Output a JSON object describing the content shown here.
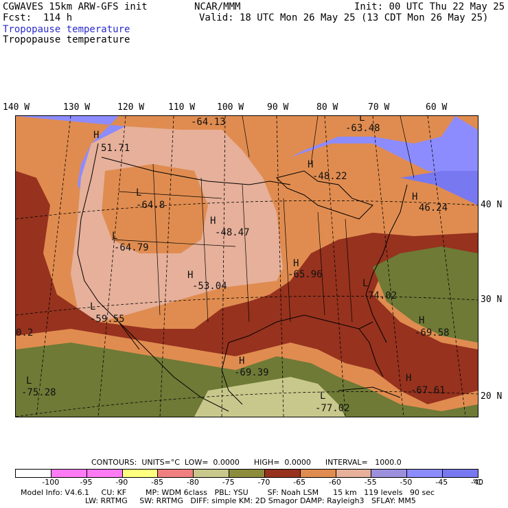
{
  "header": {
    "model": "CGWAVES 15km ARW-GFS init",
    "forecast": "Fcst:  114 h",
    "org": "NCAR/MMM",
    "init": "Init: 00 UTC Thu 22 May 25",
    "valid": "Valid: 18 UTC Mon 26 May 25 (13 CDT Mon 26 May 25)",
    "field_title_1": "Tropopause temperature",
    "field_title_2": "Tropopause temperature"
  },
  "axes": {
    "lon_labels": [
      "140 W",
      "130 W",
      "120 W",
      "110 W",
      "100 W",
      "90 W",
      "80 W",
      "70 W",
      "60 W"
    ],
    "lat_labels": [
      "40 N",
      "30 N",
      "20 N"
    ]
  },
  "map": {
    "colors": {
      "c_n100": "#ffffff",
      "c_n95": "#ff7af5",
      "c_n90": "#ffff80",
      "c_n85": "#f08080",
      "c_n80": "#c8c88c",
      "c_n75": "#8c8c3c",
      "c_n70": "#6e7a36",
      "c_n65": "#96321e",
      "c_n60": "#e08c50",
      "c_n55": "#e6b09a",
      "c_n50": "#9c90dc",
      "c_n45": "#8c8cff",
      "c_n40": "#7878f0"
    },
    "labels": [
      {
        "kind": "H",
        "value": "-64.13"
      },
      {
        "kind": "L",
        "value": "-63.48"
      },
      {
        "kind": "H",
        "value": "51.71"
      },
      {
        "kind": "H",
        "value": "-48.22"
      },
      {
        "kind": "L",
        "value": "-64.8"
      },
      {
        "kind": "H",
        "value": "-48.47"
      },
      {
        "kind": "H",
        "value": "46.24"
      },
      {
        "kind": "L",
        "value": "-64.79"
      },
      {
        "kind": "H",
        "value": "-53.04"
      },
      {
        "kind": "H",
        "value": "-65.96"
      },
      {
        "kind": "L",
        "value": "74.02"
      },
      {
        "kind": "L",
        "value": "-59.55"
      },
      {
        "kind": "H",
        "value": "-69.58"
      },
      {
        "kind": "H",
        "value": "-69.39"
      },
      {
        "kind": "L",
        "value": "-75.28"
      },
      {
        "kind": "H",
        "value": "-67.61"
      },
      {
        "kind": "L",
        "value": "-77.02"
      },
      {
        "kind": "",
        "value": "0.2"
      }
    ]
  },
  "footer": {
    "contours": "CONTOURS:  UNITS=°C  LOW=  0.0000      HIGH=  0.0000      INTERVAL=   1000.0",
    "ticks": [
      "-100",
      "-95",
      "-90",
      "-85",
      "-80",
      "-75",
      "-70",
      "-65",
      "-60",
      "-55",
      "-50",
      "-45",
      "-40",
      "°C"
    ],
    "model_info": "Model Info: V4.6.1     CU: KF        MP: WDM 6class   PBL: YSU        SF: Noah LSM      15 km   119 levels   90 sec",
    "model_info_2": "LW: RRTMG     SW: RRTMG   DIFF: simple KM: 2D Smagor DAMP: Rayleigh3   SFLAY: MM5"
  }
}
